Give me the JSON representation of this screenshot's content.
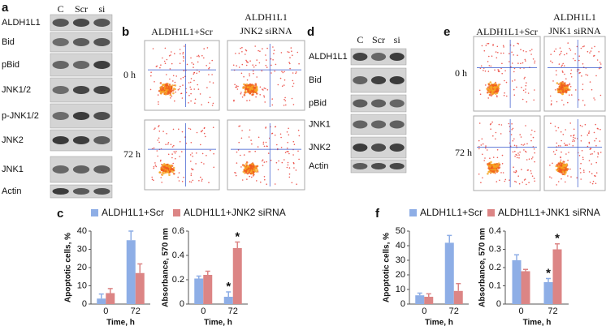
{
  "blot_a": {
    "label": "a",
    "columns": [
      "C",
      "Scr",
      "si"
    ],
    "rows": [
      "ALDH1L1",
      "Bid",
      "pBid",
      "JNK1/2",
      "p-JNK1/2",
      "JNK2",
      "JNK1",
      "Actin"
    ]
  },
  "flow_b": {
    "label": "b",
    "headers": [
      [
        "ALDH1L1+Scr"
      ],
      [
        "ALDH1L1",
        "JNK2 siRNA"
      ]
    ],
    "times": [
      "0 h",
      "72 h"
    ]
  },
  "blot_d": {
    "label": "d",
    "columns": [
      "C",
      "Scr",
      "si"
    ],
    "rows": [
      "ALDH1L1",
      "Bid",
      "pBid",
      "JNK1",
      "JNK2",
      "Actin"
    ]
  },
  "flow_e": {
    "label": "e",
    "headers": [
      [
        "ALDH1L1+Scr"
      ],
      [
        "ALDH1L1",
        "JNK1 siRNA"
      ]
    ],
    "times": [
      "0 h",
      "72 h"
    ]
  },
  "panel_c_label": "c",
  "panel_f_label": "f",
  "chart_data": [
    {
      "type": "bar",
      "ylabel": "Apoptotic cells, %",
      "xlabel": "Time, h",
      "categories": [
        "0",
        "72"
      ],
      "ylim": [
        0,
        40
      ],
      "yticks": [
        0,
        10,
        20,
        30,
        40
      ],
      "series": [
        {
          "name": "ALDH1L1+Scr",
          "color": "#8eaee6",
          "values": [
            3,
            35
          ],
          "errors": [
            2.5,
            5
          ]
        },
        {
          "name": "ALDH1L1+JNK2 siRNA",
          "color": "#dc8585",
          "values": [
            6,
            17
          ],
          "errors": [
            2.5,
            5
          ]
        }
      ]
    },
    {
      "type": "bar",
      "ylabel": "Absorbance, 570 nm",
      "xlabel": "Time, h",
      "categories": [
        "0",
        "72"
      ],
      "ylim": [
        0,
        0.6
      ],
      "yticks": [
        0,
        0.2,
        0.4,
        0.6
      ],
      "series": [
        {
          "color": "#8eaee6",
          "values": [
            0.21,
            0.06
          ],
          "errors": [
            0.02,
            0.04
          ],
          "significance": [
            null,
            "*"
          ]
        },
        {
          "color": "#dc8585",
          "values": [
            0.24,
            0.46
          ],
          "errors": [
            0.03,
            0.05
          ],
          "significance": [
            null,
            "*"
          ]
        }
      ]
    },
    {
      "type": "bar",
      "ylabel": "Apoptotic cells, %",
      "xlabel": "Time, h",
      "categories": [
        "0",
        "72"
      ],
      "ylim": [
        0,
        50
      ],
      "yticks": [
        0,
        10,
        20,
        30,
        40,
        50
      ],
      "series": [
        {
          "name": "ALDH1L1+Scr",
          "color": "#8eaee6",
          "values": [
            6,
            42
          ],
          "errors": [
            1.5,
            5
          ]
        },
        {
          "name": "ALDH1L1+JNK1 siRNA",
          "color": "#dc8585",
          "values": [
            5,
            9
          ],
          "errors": [
            2,
            5
          ]
        }
      ]
    },
    {
      "type": "bar",
      "ylabel": "Absorbance, 570 nm",
      "xlabel": "Time, h",
      "categories": [
        "0",
        "72"
      ],
      "ylim": [
        0,
        0.4
      ],
      "yticks": [
        0,
        0.1,
        0.2,
        0.3,
        0.4
      ],
      "series": [
        {
          "color": "#8eaee6",
          "values": [
            0.24,
            0.12
          ],
          "errors": [
            0.03,
            0.02
          ],
          "significance": [
            null,
            "*"
          ]
        },
        {
          "color": "#dc8585",
          "values": [
            0.18,
            0.3
          ],
          "errors": [
            0.01,
            0.03
          ],
          "significance": [
            null,
            "*"
          ]
        }
      ]
    }
  ]
}
